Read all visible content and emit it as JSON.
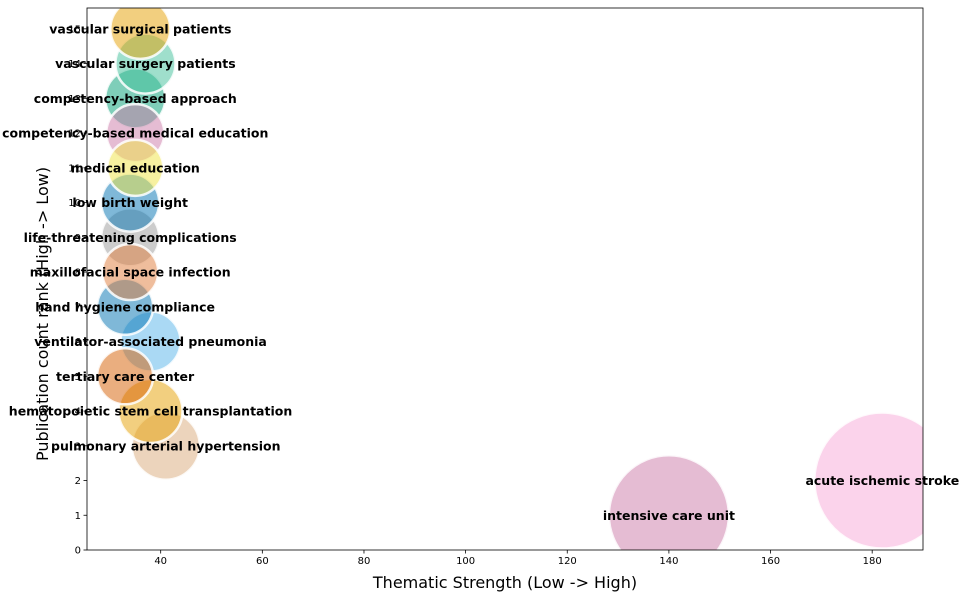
{
  "chart_data": {
    "type": "scatter",
    "title": "",
    "xlabel": "Thematic Strength (Low -> High)",
    "ylabel": "Publication count rank (High -> Low)",
    "xlim": [
      25.5,
      190
    ],
    "ylim": [
      0,
      15.6
    ],
    "xticks": [
      40,
      60,
      80,
      100,
      120,
      140,
      160,
      180
    ],
    "yticks": [
      0,
      1,
      2,
      3,
      4,
      5,
      6,
      7,
      8,
      9,
      10,
      11,
      12,
      13,
      14,
      15
    ],
    "grid": false,
    "legend": "none",
    "points": [
      {
        "label": "intensive care unit",
        "x": 140,
        "y": 1,
        "size": 60,
        "color": "#cc79a7"
      },
      {
        "label": "acute ischemic stroke",
        "x": 182,
        "y": 2,
        "size": 68,
        "color": "#f7a8d8"
      },
      {
        "label": "pulmonary arterial hypertension",
        "x": 41,
        "y": 3,
        "size": 34,
        "color": "#d9a97a"
      },
      {
        "label": "hematopoietic stem cell transplantation",
        "x": 38,
        "y": 4,
        "size": 32,
        "color": "#e69f00"
      },
      {
        "label": "tertiary care center",
        "x": 33,
        "y": 5,
        "size": 28,
        "color": "#d55e00"
      },
      {
        "label": "ventilator-associated pneumonia",
        "x": 38,
        "y": 6,
        "size": 30,
        "color": "#56b4e9"
      },
      {
        "label": "hand hygiene compliance",
        "x": 33,
        "y": 7,
        "size": 28,
        "color": "#0072b2"
      },
      {
        "label": "maxillofacial space infection",
        "x": 34,
        "y": 8,
        "size": 28,
        "color": "#e07b39"
      },
      {
        "label": "life-threatening complications",
        "x": 34,
        "y": 9,
        "size": 29,
        "color": "#999999"
      },
      {
        "label": "low birth weight",
        "x": 34,
        "y": 10,
        "size": 29,
        "color": "#0072b2"
      },
      {
        "label": "medical education",
        "x": 35,
        "y": 11,
        "size": 28,
        "color": "#f0e442"
      },
      {
        "label": "competency-based medical education",
        "x": 35,
        "y": 12,
        "size": 29,
        "color": "#cc79a7"
      },
      {
        "label": "competency-based approach",
        "x": 35,
        "y": 13,
        "size": 30,
        "color": "#009e73"
      },
      {
        "label": "vascular surgery patients",
        "x": 37,
        "y": 14,
        "size": 30,
        "color": "#3fbf9a"
      },
      {
        "label": "vascular surgical patients",
        "x": 36,
        "y": 15,
        "size": 30,
        "color": "#e69f00"
      }
    ]
  }
}
